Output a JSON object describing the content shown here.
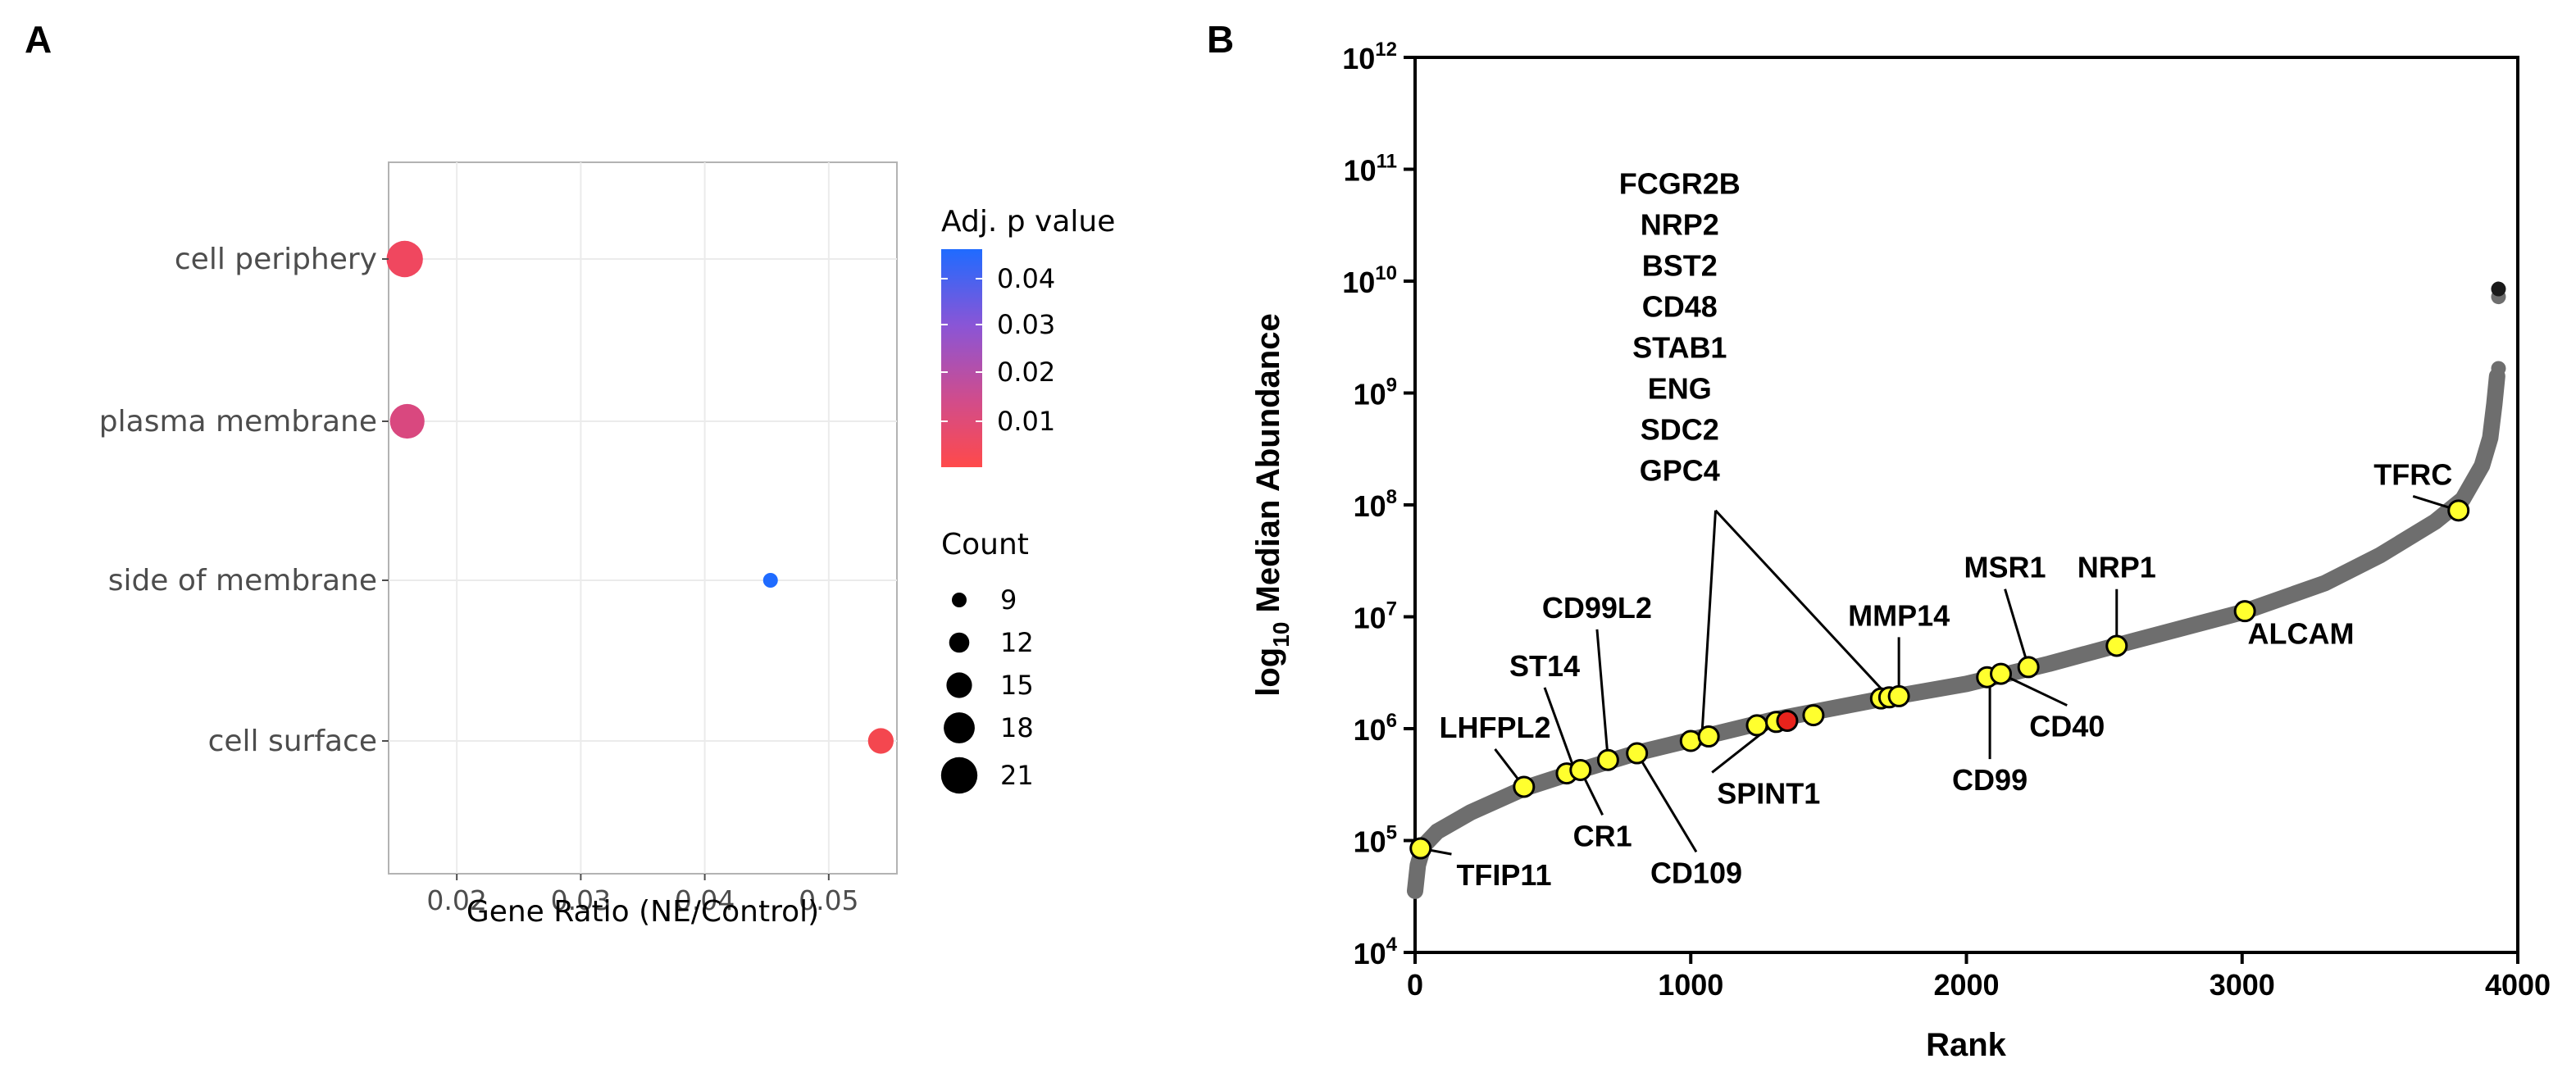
{
  "chart_data": [
    {
      "panel": "A",
      "type": "scatter",
      "title": "",
      "xlabel": "Gene Ratio (NE/Control)",
      "ylabel": "",
      "xlim": [
        0.0145,
        0.0555
      ],
      "xticks": [
        0.02,
        0.03,
        0.04,
        0.05
      ],
      "xtick_labels": [
        "0.02",
        "0.03",
        "0.04",
        "0.05"
      ],
      "categories": [
        "cell periphery",
        "plasma membrane",
        "side of membrane",
        "cell surface"
      ],
      "points": [
        {
          "category": "cell periphery",
          "x": 0.0158,
          "count": 21,
          "padj": 0.004,
          "color": "#f0475f"
        },
        {
          "category": "plasma membrane",
          "x": 0.016,
          "count": 20,
          "padj": 0.011,
          "color": "#d9487f"
        },
        {
          "category": "side of membrane",
          "x": 0.0453,
          "count": 9,
          "padj": 0.045,
          "color": "#1f6bff"
        },
        {
          "category": "cell surface",
          "x": 0.0542,
          "count": 15,
          "padj": 0.003,
          "color": "#f4474f"
        }
      ],
      "color_legend": {
        "title": "Adj. p value",
        "ticks": [
          "0.04",
          "0.03",
          "0.02",
          "0.01"
        ],
        "low_color": "#ff4a4a",
        "high_color": "#1f6bff"
      },
      "size_legend": {
        "title": "Count",
        "values": [
          "9",
          "12",
          "15",
          "18",
          "21"
        ]
      }
    },
    {
      "panel": "B",
      "type": "scatter",
      "title": "",
      "xlabel": "Rank",
      "ylabel_prefix": "log",
      "ylabel_sub": "10",
      "ylabel_suffix": " Median Abundance",
      "xlim": [
        0,
        4000
      ],
      "xticks": [
        "0",
        "1000",
        "2000",
        "3000",
        "4000"
      ],
      "ylim_log10": [
        4,
        12
      ],
      "ytick_base": "10",
      "ytick_exponents": [
        "4",
        "5",
        "6",
        "7",
        "8",
        "9",
        "10",
        "11",
        "12"
      ],
      "series_color": "#6e6e6e",
      "curve_points": [
        {
          "rank": 0,
          "log10": 4.55
        },
        {
          "rank": 10,
          "log10": 4.78
        },
        {
          "rank": 30,
          "log10": 4.95
        },
        {
          "rank": 80,
          "log10": 5.08
        },
        {
          "rank": 200,
          "log10": 5.25
        },
        {
          "rank": 400,
          "log10": 5.47
        },
        {
          "rank": 600,
          "log10": 5.63
        },
        {
          "rank": 800,
          "log10": 5.78
        },
        {
          "rank": 1000,
          "log10": 5.9
        },
        {
          "rank": 1300,
          "log10": 6.08
        },
        {
          "rank": 1700,
          "log10": 6.27
        },
        {
          "rank": 2000,
          "log10": 6.4
        },
        {
          "rank": 2300,
          "log10": 6.58
        },
        {
          "rank": 2600,
          "log10": 6.78
        },
        {
          "rank": 3000,
          "log10": 7.04
        },
        {
          "rank": 3300,
          "log10": 7.3
        },
        {
          "rank": 3500,
          "log10": 7.55
        },
        {
          "rank": 3700,
          "log10": 7.85
        },
        {
          "rank": 3800,
          "log10": 8.05
        },
        {
          "rank": 3870,
          "log10": 8.35
        },
        {
          "rank": 3900,
          "log10": 8.6
        },
        {
          "rank": 3915,
          "log10": 8.9
        },
        {
          "rank": 3925,
          "log10": 9.15
        }
      ],
      "outlier_points": [
        {
          "rank": 3930,
          "log10": 9.22,
          "color": "#6e6e6e"
        },
        {
          "rank": 3930,
          "log10": 9.86,
          "color": "#6e6e6e"
        },
        {
          "rank": 3930,
          "log10": 9.93,
          "color": "#1a1a1a"
        }
      ],
      "highlight_points": [
        {
          "rank": 20,
          "log10": 4.93,
          "color": "#ffff2e"
        },
        {
          "rank": 395,
          "log10": 5.48,
          "color": "#ffff2e"
        },
        {
          "rank": 550,
          "log10": 5.6,
          "color": "#ffff2e"
        },
        {
          "rank": 600,
          "log10": 5.63,
          "color": "#ffff2e"
        },
        {
          "rank": 700,
          "log10": 5.72,
          "color": "#ffff2e"
        },
        {
          "rank": 805,
          "log10": 5.78,
          "color": "#ffff2e"
        },
        {
          "rank": 1000,
          "log10": 5.89,
          "color": "#ffff2e"
        },
        {
          "rank": 1065,
          "log10": 5.93,
          "color": "#ffff2e"
        },
        {
          "rank": 1240,
          "log10": 6.03,
          "color": "#ffff2e"
        },
        {
          "rank": 1310,
          "log10": 6.06,
          "color": "#ffff2e"
        },
        {
          "rank": 1350,
          "log10": 6.07,
          "color": "#e8231c"
        },
        {
          "rank": 1445,
          "log10": 6.12,
          "color": "#ffff2e"
        },
        {
          "rank": 1690,
          "log10": 6.27,
          "color": "#ffff2e"
        },
        {
          "rank": 1720,
          "log10": 6.28,
          "color": "#ffff2e"
        },
        {
          "rank": 1755,
          "log10": 6.29,
          "color": "#ffff2e"
        },
        {
          "rank": 2075,
          "log10": 6.46,
          "color": "#ffff2e"
        },
        {
          "rank": 2125,
          "log10": 6.49,
          "color": "#ffff2e"
        },
        {
          "rank": 2225,
          "log10": 6.55,
          "color": "#ffff2e"
        },
        {
          "rank": 2545,
          "log10": 6.74,
          "color": "#ffff2e"
        },
        {
          "rank": 3010,
          "log10": 7.05,
          "color": "#ffff2e"
        },
        {
          "rank": 3785,
          "log10": 7.95,
          "color": "#ffff2e"
        }
      ],
      "annotations": [
        {
          "text": "TFIP11",
          "rank": 20,
          "log10": 4.93,
          "label_rank": 150,
          "label_log10": 4.6,
          "anchor": "start"
        },
        {
          "text": "LHFPL2",
          "rank": 395,
          "log10": 5.48,
          "label_rank": 290,
          "label_log10": 5.92,
          "anchor": "middle"
        },
        {
          "text": "ST14",
          "rank": 580,
          "log10": 5.62,
          "label_rank": 470,
          "label_log10": 6.47,
          "anchor": "middle"
        },
        {
          "text": "CR1",
          "rank": 600,
          "log10": 5.63,
          "label_rank": 680,
          "label_log10": 4.95,
          "anchor": "middle"
        },
        {
          "text": "CD99L2",
          "rank": 700,
          "log10": 5.72,
          "label_rank": 660,
          "label_log10": 6.99,
          "anchor": "middle"
        },
        {
          "text": "CD109",
          "rank": 805,
          "log10": 5.78,
          "label_rank": 1020,
          "label_log10": 4.62,
          "anchor": "middle"
        },
        {
          "text": "SPINT1",
          "rank": 1310,
          "log10": 6.06,
          "label_rank": 1095,
          "label_log10": 5.33,
          "anchor": "start"
        },
        {
          "text": "MMP14",
          "rank": 1755,
          "log10": 6.29,
          "label_rank": 1755,
          "label_log10": 6.92,
          "anchor": "middle"
        },
        {
          "text": "MSR1",
          "rank": 2225,
          "log10": 6.55,
          "label_rank": 2140,
          "label_log10": 7.35,
          "anchor": "middle"
        },
        {
          "text": "NRP1",
          "rank": 2545,
          "log10": 6.74,
          "label_rank": 2545,
          "label_log10": 7.35,
          "anchor": "middle"
        },
        {
          "text": "CD99",
          "rank": 2085,
          "log10": 6.46,
          "label_rank": 2085,
          "label_log10": 5.45,
          "anchor": "middle"
        },
        {
          "text": "CD40",
          "rank": 2125,
          "log10": 6.49,
          "label_rank": 2365,
          "label_log10": 5.93,
          "anchor": "middle"
        },
        {
          "text": "ALCAM",
          "rank": 3010,
          "log10": 7.05,
          "label_rank": 3020,
          "label_log10": 6.76,
          "anchor": "start"
        },
        {
          "text": "TFRC",
          "rank": 3785,
          "log10": 7.95,
          "label_rank": 3620,
          "label_log10": 8.18,
          "anchor": "middle"
        }
      ],
      "stacked_genes": [
        "FCGR2B",
        "NRP2",
        "BST2",
        "CD48",
        "STAB1",
        "ENG",
        "SDC2",
        "GPC4"
      ],
      "stacked_targets": [
        {
          "rank": 1040,
          "log10": 5.92
        },
        {
          "rank": 1720,
          "log10": 6.28
        }
      ]
    }
  ]
}
